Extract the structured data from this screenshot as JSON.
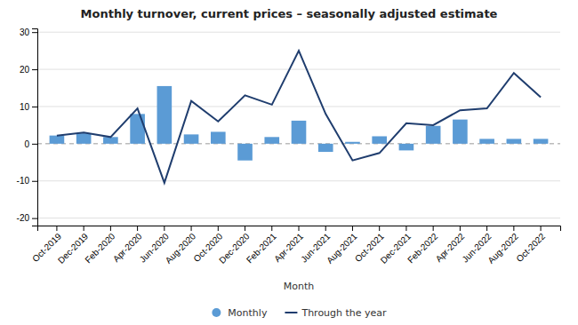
{
  "chart_data": {
    "type": "bar",
    "title": "Monthly turnover, current prices – seasonally adjusted estimate",
    "xlabel": "Month",
    "categories": [
      "Oct-2019",
      "Dec-2019",
      "Feb-2020",
      "Apr-2020",
      "Jun-2020",
      "Aug-2020",
      "Oct-2020",
      "Dec-2020",
      "Feb-2021",
      "Apr-2021",
      "Jun-2021",
      "Aug-2021",
      "Oct-2021",
      "Dec-2021",
      "Feb-2022",
      "Apr-2022",
      "Jun-2022",
      "Aug-2022",
      "Oct-2022"
    ],
    "series": [
      {
        "name": "Monthly",
        "type": "bar",
        "color": "#5b9bd5",
        "values": [
          2.2,
          2.8,
          1.8,
          8.0,
          15.5,
          2.5,
          3.2,
          -4.5,
          1.8,
          6.2,
          -2.2,
          0.5,
          2.0,
          -1.8,
          4.8,
          6.5,
          1.3,
          1.3,
          1.3
        ]
      },
      {
        "name": "Through the year",
        "type": "line",
        "color": "#1f3d6e",
        "values": [
          2.2,
          3.0,
          1.8,
          9.5,
          -10.5,
          11.5,
          6.0,
          13.0,
          10.5,
          25.0,
          8.0,
          -4.5,
          -2.5,
          5.5,
          5.0,
          9.0,
          9.5,
          19.0,
          12.5
        ]
      }
    ],
    "ylim": [
      -22,
      31
    ],
    "yticks": [
      -20,
      -10,
      0,
      10,
      20,
      30
    ],
    "grid": true,
    "legend": "bottom"
  }
}
